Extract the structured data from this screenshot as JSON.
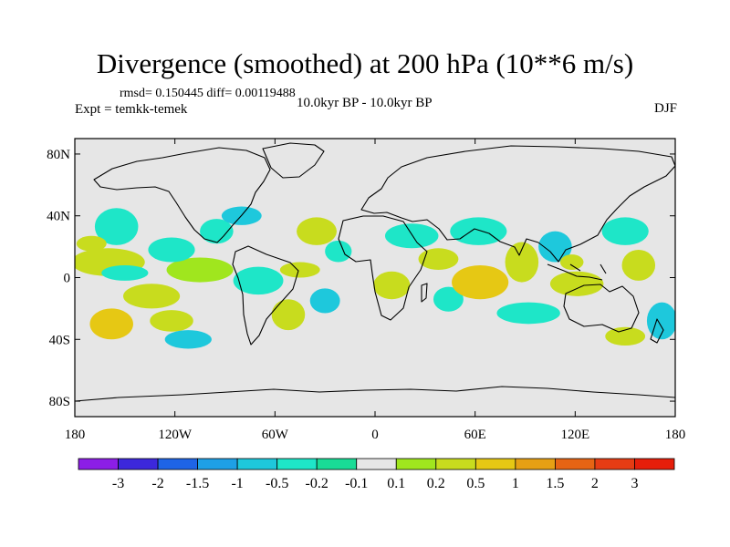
{
  "title": "Divergence (smoothed) at 200 hPa (10**6 m/s)",
  "stats_text": "rmsd= 0.150445 diff= 0.00119488",
  "expt_text": "Expt = temkk-temek",
  "period_text": "10.0kyr BP - 10.0kyr BP",
  "season_text": "DJF",
  "chart_data": {
    "type": "map-contour",
    "lon_range": [
      -180,
      180
    ],
    "lat_range": [
      -90,
      90
    ],
    "lon_ticks": [
      {
        "lon": -180,
        "label": "180"
      },
      {
        "lon": -120,
        "label": "120W"
      },
      {
        "lon": -60,
        "label": "60W"
      },
      {
        "lon": 0,
        "label": "0"
      },
      {
        "lon": 60,
        "label": "60E"
      },
      {
        "lon": 120,
        "label": "120E"
      },
      {
        "lon": 180,
        "label": "180"
      }
    ],
    "lat_ticks": [
      {
        "lat": 80,
        "label": "80N"
      },
      {
        "lat": 40,
        "label": "40N"
      },
      {
        "lat": 0,
        "label": "0"
      },
      {
        "lat": -40,
        "label": "40S"
      },
      {
        "lat": -80,
        "label": "80S"
      }
    ],
    "colorbar": {
      "colors": [
        "#8c1ee6",
        "#3c28dc",
        "#1e64e6",
        "#1ea0e6",
        "#1ec8dc",
        "#1ee6c8",
        "#19dc96",
        "#e6e6e6",
        "#a0e61e",
        "#c8dc1e",
        "#e6c814",
        "#e6a014",
        "#e66414",
        "#e63c14",
        "#e61e0a"
      ],
      "labels": [
        "-3",
        "-2",
        "-1.5",
        "-1",
        "-0.5",
        "-0.2",
        "-0.1",
        "0.1",
        "0.2",
        "0.5",
        "1",
        "1.5",
        "2",
        "3"
      ]
    },
    "blobs": [
      {
        "lon": -160,
        "lat": 10,
        "rlon": 22,
        "rlat": 9,
        "c": 9
      },
      {
        "lon": -155,
        "lat": 33,
        "rlon": 13,
        "rlat": 12,
        "c": 5
      },
      {
        "lon": -170,
        "lat": 22,
        "rlon": 9,
        "rlat": 5,
        "c": 9
      },
      {
        "lon": -158,
        "lat": -30,
        "rlon": 13,
        "rlat": 10,
        "c": 10
      },
      {
        "lon": -134,
        "lat": -12,
        "rlon": 17,
        "rlat": 8,
        "c": 9
      },
      {
        "lon": -122,
        "lat": -28,
        "rlon": 13,
        "rlat": 7,
        "c": 9
      },
      {
        "lon": -105,
        "lat": 5,
        "rlon": 20,
        "rlat": 8,
        "c": 8
      },
      {
        "lon": -150,
        "lat": 3,
        "rlon": 14,
        "rlat": 5,
        "c": 5
      },
      {
        "lon": -122,
        "lat": 18,
        "rlon": 14,
        "rlat": 8,
        "c": 5
      },
      {
        "lon": -95,
        "lat": 30,
        "rlon": 10,
        "rlat": 8,
        "c": 5
      },
      {
        "lon": -112,
        "lat": -40,
        "rlon": 14,
        "rlat": 6,
        "c": 4
      },
      {
        "lon": -80,
        "lat": 40,
        "rlon": 12,
        "rlat": 6,
        "c": 4
      },
      {
        "lon": -70,
        "lat": -2,
        "rlon": 15,
        "rlat": 9,
        "c": 5
      },
      {
        "lon": -52,
        "lat": -24,
        "rlon": 10,
        "rlat": 10,
        "c": 9
      },
      {
        "lon": -45,
        "lat": 5,
        "rlon": 12,
        "rlat": 5,
        "c": 9
      },
      {
        "lon": -35,
        "lat": 30,
        "rlon": 12,
        "rlat": 9,
        "c": 9
      },
      {
        "lon": -22,
        "lat": 17,
        "rlon": 8,
        "rlat": 7,
        "c": 5
      },
      {
        "lon": -30,
        "lat": -15,
        "rlon": 9,
        "rlat": 8,
        "c": 4
      },
      {
        "lon": 10,
        "lat": -5,
        "rlon": 11,
        "rlat": 9,
        "c": 9
      },
      {
        "lon": 22,
        "lat": 27,
        "rlon": 16,
        "rlat": 8,
        "c": 5
      },
      {
        "lon": 38,
        "lat": 12,
        "rlon": 12,
        "rlat": 7,
        "c": 9
      },
      {
        "lon": 44,
        "lat": -14,
        "rlon": 9,
        "rlat": 8,
        "c": 5
      },
      {
        "lon": 63,
        "lat": -3,
        "rlon": 17,
        "rlat": 11,
        "c": 10
      },
      {
        "lon": 62,
        "lat": 30,
        "rlon": 17,
        "rlat": 9,
        "c": 5
      },
      {
        "lon": 88,
        "lat": 10,
        "rlon": 10,
        "rlat": 13,
        "c": 9
      },
      {
        "lon": 108,
        "lat": 20,
        "rlon": 10,
        "rlat": 10,
        "c": 4
      },
      {
        "lon": 121,
        "lat": -4,
        "rlon": 16,
        "rlat": 8,
        "c": 9
      },
      {
        "lon": 118,
        "lat": 10,
        "rlon": 7,
        "rlat": 5,
        "c": 9
      },
      {
        "lon": 92,
        "lat": -23,
        "rlon": 19,
        "rlat": 7,
        "c": 5
      },
      {
        "lon": 150,
        "lat": 30,
        "rlon": 14,
        "rlat": 9,
        "c": 5
      },
      {
        "lon": 158,
        "lat": 8,
        "rlon": 10,
        "rlat": 10,
        "c": 9
      },
      {
        "lon": 172,
        "lat": -28,
        "rlon": 9,
        "rlat": 12,
        "c": 4
      },
      {
        "lon": 150,
        "lat": -38,
        "rlon": 12,
        "rlat": 6,
        "c": 9
      }
    ]
  }
}
